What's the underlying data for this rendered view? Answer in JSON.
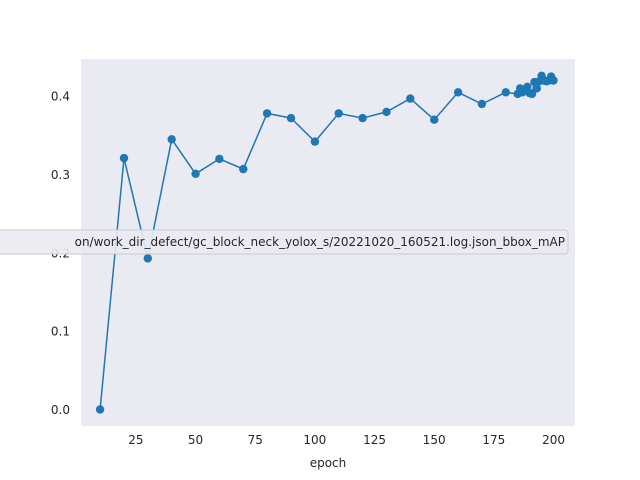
{
  "chart_data": {
    "type": "line",
    "title": "",
    "xlabel": "epoch",
    "ylabel": "",
    "xlim": [
      2,
      209
    ],
    "ylim": [
      -0.021,
      0.4475
    ],
    "xticks": [
      25,
      50,
      75,
      100,
      125,
      150,
      175,
      200
    ],
    "yticks": [
      0.0,
      0.1,
      0.2,
      0.3,
      0.4
    ],
    "ytick_labels": [
      "0.0",
      "0.1",
      "0.2",
      "0.3",
      "0.4"
    ],
    "grid": false,
    "legend_position": "center-left",
    "colors": {
      "background": "#eaeaf2",
      "series": "#1f77b4"
    },
    "series": [
      {
        "name": "on/work_dir_defect/gc_block_neck_yolox_s/20221020_160521.log.json_bbox_mAP",
        "color": "#1f77b4",
        "marker": "circle",
        "x": [
          10,
          20,
          30,
          40,
          50,
          60,
          70,
          80,
          90,
          100,
          110,
          120,
          130,
          140,
          150,
          160,
          170,
          180,
          185,
          186,
          187,
          188,
          189,
          190,
          191,
          192,
          193,
          194,
          195,
          196,
          197,
          198,
          199,
          200
        ],
        "y": [
          0.0,
          0.321,
          0.193,
          0.345,
          0.301,
          0.32,
          0.307,
          0.378,
          0.372,
          0.342,
          0.378,
          0.372,
          0.38,
          0.397,
          0.37,
          0.405,
          0.39,
          0.405,
          0.403,
          0.41,
          0.405,
          0.408,
          0.412,
          0.404,
          0.403,
          0.418,
          0.41,
          0.419,
          0.426,
          0.42,
          0.419,
          0.42,
          0.425,
          0.42
        ]
      }
    ]
  }
}
